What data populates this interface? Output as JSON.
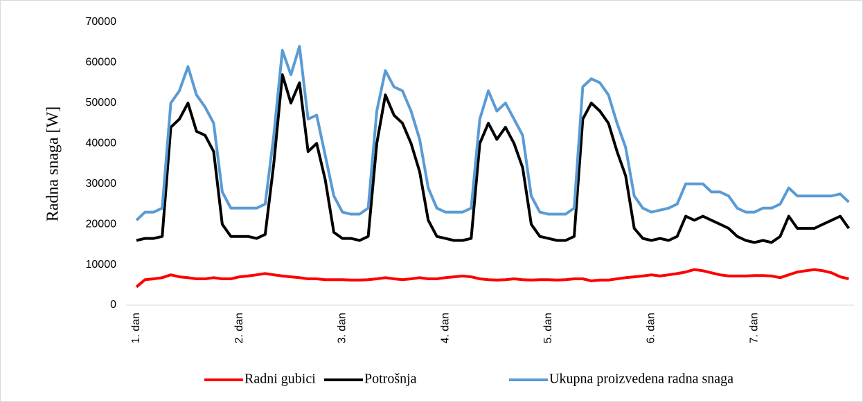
{
  "chart_data": {
    "type": "line",
    "y_label": "Radna snaga [W]",
    "categories": [
      "1. dan",
      null,
      null,
      null,
      null,
      null,
      null,
      null,
      null,
      null,
      null,
      null,
      "2. dan",
      null,
      null,
      null,
      null,
      null,
      null,
      null,
      null,
      null,
      null,
      null,
      "3. dan",
      null,
      null,
      null,
      null,
      null,
      null,
      null,
      null,
      null,
      null,
      null,
      "4. dan",
      null,
      null,
      null,
      null,
      null,
      null,
      null,
      null,
      null,
      null,
      null,
      "5. dan",
      null,
      null,
      null,
      null,
      null,
      null,
      null,
      null,
      null,
      null,
      null,
      "6. dan",
      null,
      null,
      null,
      null,
      null,
      null,
      null,
      null,
      null,
      null,
      null,
      "7. dan",
      null,
      null,
      null,
      null,
      null,
      null,
      null,
      null,
      null,
      null,
      null
    ],
    "series": [
      {
        "name": "Radni gubici",
        "color": "#ff0000",
        "values": [
          4500,
          6300,
          6500,
          6800,
          7500,
          7000,
          6800,
          6500,
          6500,
          6800,
          6500,
          6500,
          7000,
          7200,
          7500,
          7800,
          7500,
          7200,
          7000,
          6800,
          6500,
          6500,
          6300,
          6300,
          6300,
          6200,
          6200,
          6300,
          6500,
          6800,
          6500,
          6300,
          6500,
          6800,
          6500,
          6500,
          6800,
          7000,
          7200,
          7000,
          6500,
          6300,
          6200,
          6300,
          6500,
          6300,
          6200,
          6300,
          6300,
          6200,
          6300,
          6500,
          6500,
          6000,
          6200,
          6200,
          6500,
          6800,
          7000,
          7200,
          7500,
          7200,
          7500,
          7800,
          8200,
          8800,
          8500,
          8000,
          7500,
          7200,
          7200,
          7200,
          7300,
          7300,
          7200,
          6800,
          7500,
          8200,
          8500,
          8800,
          8500,
          8000,
          7000,
          6500
        ]
      },
      {
        "name": "Potrošnja",
        "color": "#000000",
        "values": [
          16000,
          16500,
          16500,
          17000,
          44000,
          46000,
          50000,
          43000,
          42000,
          38000,
          20000,
          17000,
          17000,
          17000,
          16500,
          17500,
          35000,
          57000,
          50000,
          55000,
          38000,
          40000,
          31000,
          18000,
          16500,
          16500,
          16000,
          17000,
          40000,
          52000,
          47000,
          45000,
          40000,
          33000,
          21000,
          17000,
          16500,
          16000,
          16000,
          16500,
          40000,
          45000,
          41000,
          44000,
          40000,
          34000,
          20000,
          17000,
          16500,
          16000,
          16000,
          17000,
          46000,
          50000,
          48000,
          45000,
          38000,
          32000,
          19000,
          16500,
          16000,
          16500,
          16000,
          17000,
          22000,
          21000,
          22000,
          21000,
          20000,
          19000,
          17000,
          16000,
          15500,
          16000,
          15500,
          17000,
          22000,
          19000,
          19000,
          19000,
          20000,
          21000,
          22000,
          19000
        ]
      },
      {
        "name": "Ukupna proizvedena radna snaga",
        "color": "#5b9bd5",
        "values": [
          21000,
          23000,
          23000,
          24000,
          50000,
          53000,
          59000,
          52000,
          49000,
          45000,
          28000,
          24000,
          24000,
          24000,
          24000,
          25000,
          42000,
          63000,
          57000,
          64000,
          46000,
          47000,
          37000,
          27000,
          23000,
          22500,
          22500,
          24000,
          48000,
          58000,
          54000,
          53000,
          48000,
          41000,
          29000,
          24000,
          23000,
          23000,
          23000,
          24000,
          46000,
          53000,
          48000,
          50000,
          46000,
          42000,
          27000,
          23000,
          22500,
          22500,
          22500,
          24000,
          54000,
          56000,
          55000,
          52000,
          45000,
          39000,
          27000,
          24000,
          23000,
          23500,
          24000,
          25000,
          30000,
          30000,
          30000,
          28000,
          28000,
          27000,
          24000,
          23000,
          23000,
          24000,
          24000,
          25000,
          29000,
          27000,
          27000,
          27000,
          27000,
          27000,
          27500,
          25500
        ]
      }
    ],
    "ylim": [
      0,
      70000
    ],
    "yticks": [
      0,
      10000,
      20000,
      30000,
      40000,
      50000,
      60000,
      70000
    ],
    "grid": false,
    "legend": "bottom"
  }
}
